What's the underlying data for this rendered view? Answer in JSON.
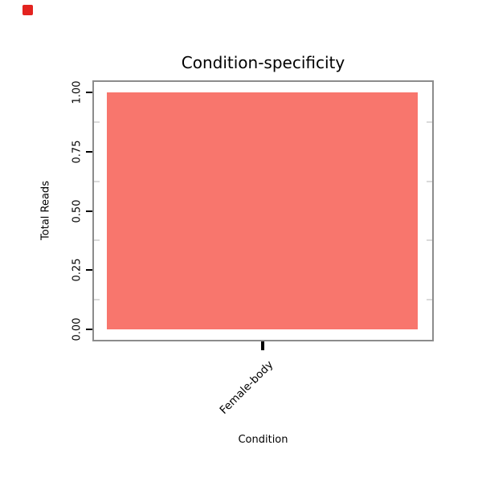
{
  "chart_data": {
    "type": "bar",
    "title": "Condition-specificity",
    "xlabel": "Condition",
    "ylabel": "Total Reads",
    "categories": [
      "Female-body"
    ],
    "values": [
      1.0
    ],
    "ylim": [
      0,
      1
    ],
    "yticks": [
      "0.00",
      "0.25",
      "0.50",
      "0.75",
      "1.00"
    ],
    "ytick_values": [
      0,
      0.25,
      0.5,
      0.75,
      1
    ],
    "bar_color": "#F8766D",
    "panel_border_color": "#8c8c8c",
    "grid": "off",
    "legend": "none"
  },
  "decorations": {
    "stop_indicator_color": "#e3231f"
  }
}
